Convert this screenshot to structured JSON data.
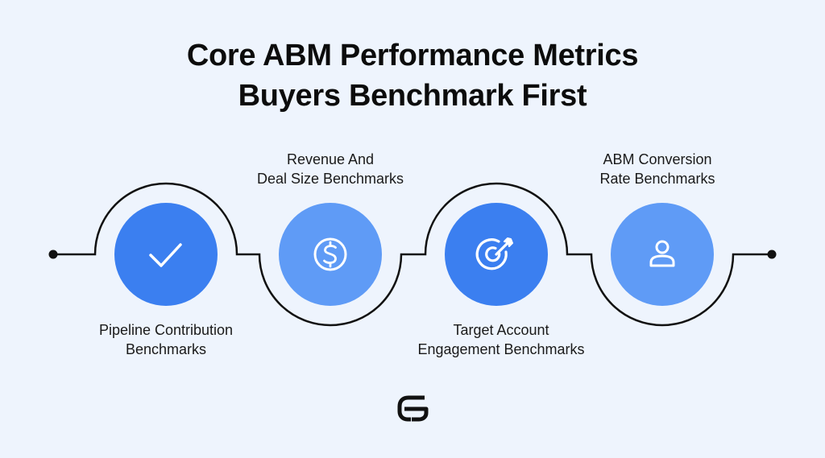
{
  "title": {
    "line1": "Core ABM Performance Metrics",
    "line2": "Buyers Benchmark First"
  },
  "steps": [
    {
      "label_line1": "Pipeline Contribution",
      "label_line2": "Benchmarks",
      "icon": "check-icon",
      "color": "#3b7ff0"
    },
    {
      "label_line1": "Revenue And",
      "label_line2": "Deal Size Benchmarks",
      "icon": "dollar-coin-icon",
      "color": "#5f9bf6"
    },
    {
      "label_line1": "Target Account",
      "label_line2": "Engagement Benchmarks",
      "icon": "target-icon",
      "color": "#3b7ff0"
    },
    {
      "label_line1": "ABM Conversion",
      "label_line2": "Rate Benchmarks",
      "icon": "user-icon",
      "color": "#5f9bf6"
    }
  ],
  "colors": {
    "background": "#eef4fd",
    "line": "#111111"
  },
  "logo": "brand-g-logo"
}
